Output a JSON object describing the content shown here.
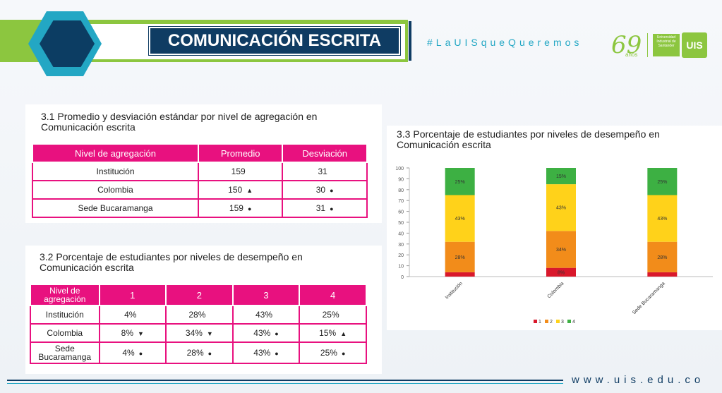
{
  "header": {
    "title": "COMUNICACIÓN ESCRITA",
    "hashtag": "#LaUISqueQueremos",
    "logo_years": "69",
    "logo_years_word": "años",
    "logo_university": "Universidad Industrial de Santander",
    "logo_uis": "UIS"
  },
  "section31": {
    "title_line1": "3.1 Promedio y desviación estándar por nivel de agregación en",
    "title_line2": "Comunicación escrita",
    "headers": [
      "Nivel de agregación",
      "Promedio",
      "Desviación"
    ],
    "rows": [
      {
        "nivel": "Institución",
        "promedio": "159",
        "promedio_mark": "",
        "desviacion": "31",
        "desviacion_mark": ""
      },
      {
        "nivel": "Colombia",
        "promedio": "150",
        "promedio_mark": "▲",
        "desviacion": "30",
        "desviacion_mark": "●"
      },
      {
        "nivel": "Sede Bucaramanga",
        "promedio": "159",
        "promedio_mark": "●",
        "desviacion": "31",
        "desviacion_mark": "●"
      }
    ]
  },
  "section32": {
    "title_line1": "3.2 Porcentaje de estudiantes por niveles de desempeño en",
    "title_line2": "Comunicación escrita",
    "headers": [
      "Nivel de agregación",
      "1",
      "2",
      "3",
      "4"
    ],
    "rows": [
      {
        "nivel": "Institución",
        "cells": [
          {
            "v": "4%",
            "m": ""
          },
          {
            "v": "28%",
            "m": ""
          },
          {
            "v": "43%",
            "m": ""
          },
          {
            "v": "25%",
            "m": ""
          }
        ]
      },
      {
        "nivel": "Colombia",
        "cells": [
          {
            "v": "8%",
            "m": "▼"
          },
          {
            "v": "34%",
            "m": "▼"
          },
          {
            "v": "43%",
            "m": "●"
          },
          {
            "v": "15%",
            "m": "▲"
          }
        ]
      },
      {
        "nivel": "Sede Bucaramanga",
        "cells": [
          {
            "v": "4%",
            "m": "●"
          },
          {
            "v": "28%",
            "m": "●"
          },
          {
            "v": "43%",
            "m": "●"
          },
          {
            "v": "25%",
            "m": "●"
          }
        ]
      }
    ]
  },
  "section33": {
    "title_line1": "3.3 Porcentaje de estudiantes por niveles de desempeño en",
    "title_line2": "Comunicación escrita"
  },
  "chart_data": {
    "type": "bar",
    "stacked": true,
    "categories": [
      "Institución",
      "Colombia",
      "Sede Bucaramanga"
    ],
    "series": [
      {
        "name": "1",
        "color": "#d9182b",
        "values": [
          4,
          8,
          4
        ],
        "labels": [
          "",
          "8%",
          ""
        ]
      },
      {
        "name": "2",
        "color": "#f28c1a",
        "values": [
          28,
          34,
          28
        ],
        "labels": [
          "28%",
          "34%",
          "28%"
        ]
      },
      {
        "name": "3",
        "color": "#ffd21a",
        "values": [
          43,
          43,
          43
        ],
        "labels": [
          "43%",
          "43%",
          "43%"
        ]
      },
      {
        "name": "4",
        "color": "#3db043",
        "values": [
          25,
          15,
          25
        ],
        "labels": [
          "25%",
          "15%",
          "25%"
        ]
      }
    ],
    "ylim": [
      0,
      100
    ],
    "yticks": [
      0,
      10,
      20,
      30,
      40,
      50,
      60,
      70,
      80,
      90,
      100
    ],
    "legend_position": "bottom",
    "grid": false
  },
  "footer": {
    "url": "www.uis.edu.co"
  },
  "colors": {
    "accent_green": "#8cc63f",
    "navy": "#0f3c63",
    "teal": "#23a7c4",
    "magenta": "#e8117f"
  }
}
